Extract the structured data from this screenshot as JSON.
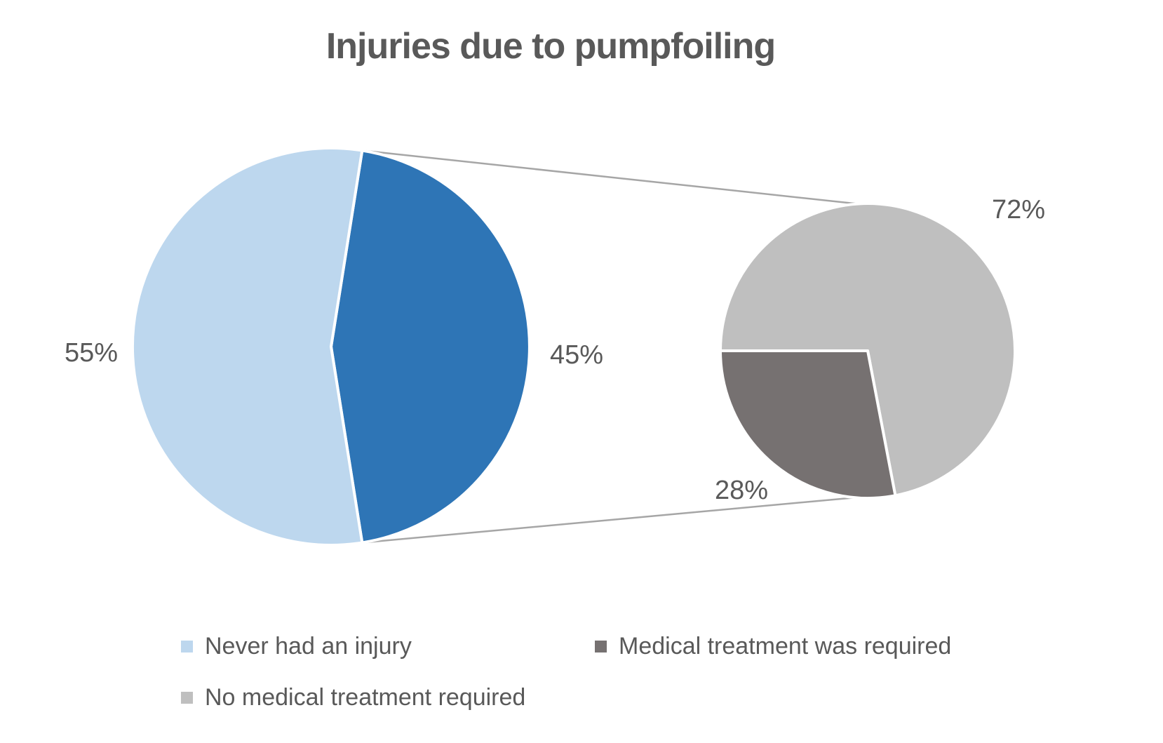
{
  "title": "Injuries due to pumpfoiling",
  "colors": {
    "background": "#FFFFFF",
    "text": "#595959",
    "connector_line": "#A6A6A6",
    "slice_border": "#FFFFFF"
  },
  "chart_data": {
    "type": "pie-of-pie",
    "title": "Injuries due to pumpfoiling",
    "units": "percent",
    "main_pie": {
      "slices": [
        {
          "legend": "Never had an injury",
          "value_pct": 55,
          "data_label": "55%",
          "color": "#BDD7EE"
        },
        {
          "legend": "",
          "value_pct": 45,
          "data_label": "45%",
          "color": "#2E75B6",
          "breaks_out_to_secondary": true
        }
      ]
    },
    "secondary_pie": {
      "slices": [
        {
          "legend": "No medical treatment required",
          "value_pct": 72,
          "data_label": "72%",
          "color": "#BFBFBF"
        },
        {
          "legend": "Medical treatment was required",
          "value_pct": 28,
          "data_label": "28%",
          "color": "#767171"
        }
      ]
    },
    "legend_entries": [
      {
        "label": "Never had an injury",
        "color": "#BDD7EE"
      },
      {
        "label": "Medical treatment was required",
        "color": "#767171"
      },
      {
        "label": "No medical treatment required",
        "color": "#BFBFBF"
      }
    ],
    "legend_position": "bottom",
    "grid": false
  }
}
